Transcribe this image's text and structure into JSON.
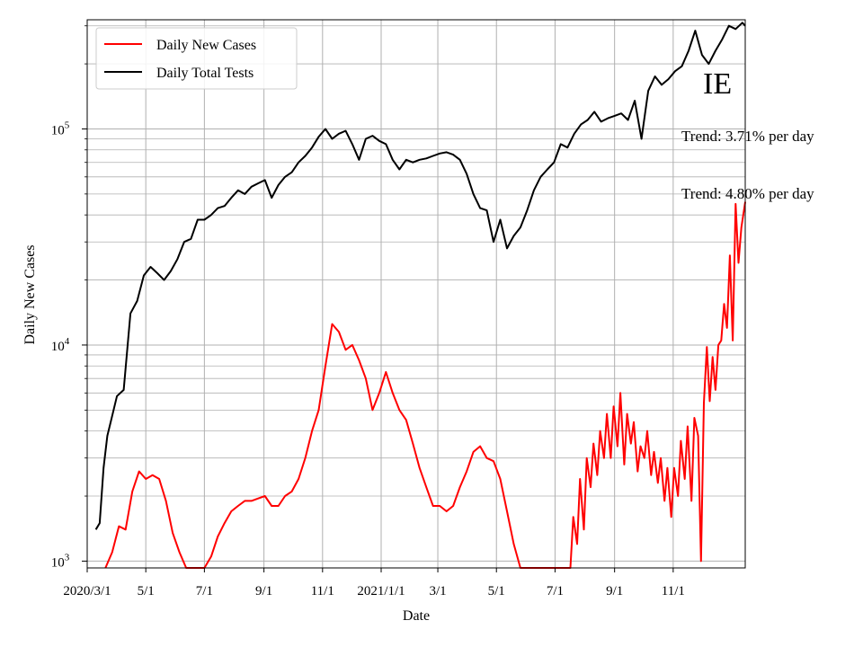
{
  "chart_data": {
    "type": "line",
    "title": "",
    "xlabel": "Date",
    "ylabel": "Daily New Cases",
    "yscale": "log",
    "ylim": [
      930,
      320000
    ],
    "xlim": [
      "2020-03-01",
      "2022-01-15"
    ],
    "grid": true,
    "legend_position": "top-left",
    "code_label": "IE",
    "annotations": [
      "Trend: 3.71% per day",
      "Trend: 4.80% per day"
    ],
    "x_ticks": [
      {
        "date": "2020-03-01",
        "label": "2020/3/1"
      },
      {
        "date": "2020-05-01",
        "label": "5/1"
      },
      {
        "date": "2020-07-01",
        "label": "7/1"
      },
      {
        "date": "2020-09-01",
        "label": "9/1"
      },
      {
        "date": "2020-11-01",
        "label": "11/1"
      },
      {
        "date": "2021-01-01",
        "label": "2021/1/1"
      },
      {
        "date": "2021-03-01",
        "label": "3/1"
      },
      {
        "date": "2021-05-01",
        "label": "5/1"
      },
      {
        "date": "2021-07-01",
        "label": "7/1"
      },
      {
        "date": "2021-09-01",
        "label": "9/1"
      },
      {
        "date": "2021-11-01",
        "label": "11/1"
      }
    ],
    "y_ticks": [
      {
        "value": 1000,
        "base": "10",
        "exp": "3"
      },
      {
        "value": 10000,
        "base": "10",
        "exp": "4"
      },
      {
        "value": 100000,
        "base": "10",
        "exp": "5"
      }
    ],
    "series": [
      {
        "name": "Daily New Cases",
        "color": "#ff0000",
        "x": [
          "2020-03-13",
          "2020-03-20",
          "2020-03-27",
          "2020-04-03",
          "2020-04-10",
          "2020-04-17",
          "2020-04-24",
          "2020-05-01",
          "2020-05-08",
          "2020-05-15",
          "2020-05-22",
          "2020-05-29",
          "2020-06-05",
          "2020-06-12",
          "2020-06-19",
          "2020-07-01",
          "2020-07-08",
          "2020-07-15",
          "2020-07-22",
          "2020-07-29",
          "2020-08-05",
          "2020-08-12",
          "2020-08-19",
          "2020-08-26",
          "2020-09-02",
          "2020-09-09",
          "2020-09-16",
          "2020-09-23",
          "2020-09-30",
          "2020-10-07",
          "2020-10-14",
          "2020-10-21",
          "2020-10-28",
          "2020-11-04",
          "2020-11-11",
          "2020-11-18",
          "2020-11-25",
          "2020-12-02",
          "2020-12-09",
          "2020-12-16",
          "2020-12-23",
          "2020-12-30",
          "2021-01-06",
          "2021-01-13",
          "2021-01-20",
          "2021-01-27",
          "2021-02-03",
          "2021-02-10",
          "2021-02-17",
          "2021-02-24",
          "2021-03-03",
          "2021-03-10",
          "2021-03-17",
          "2021-03-24",
          "2021-03-31",
          "2021-04-07",
          "2021-04-14",
          "2021-04-21",
          "2021-04-28",
          "2021-05-05",
          "2021-05-12",
          "2021-05-19",
          "2021-05-26",
          "2021-06-01",
          "2021-07-17",
          "2021-07-20",
          "2021-07-24",
          "2021-07-27",
          "2021-07-31",
          "2021-08-03",
          "2021-08-07",
          "2021-08-10",
          "2021-08-14",
          "2021-08-17",
          "2021-08-21",
          "2021-08-24",
          "2021-08-28",
          "2021-08-31",
          "2021-09-04",
          "2021-09-07",
          "2021-09-11",
          "2021-09-14",
          "2021-09-18",
          "2021-09-21",
          "2021-09-25",
          "2021-09-28",
          "2021-10-02",
          "2021-10-05",
          "2021-10-09",
          "2021-10-12",
          "2021-10-16",
          "2021-10-19",
          "2021-10-23",
          "2021-10-26",
          "2021-10-30",
          "2021-11-02",
          "2021-11-06",
          "2021-11-09",
          "2021-11-13",
          "2021-11-16",
          "2021-11-20",
          "2021-11-23",
          "2021-11-27",
          "2021-11-30",
          "2021-12-03",
          "2021-12-06",
          "2021-12-09",
          "2021-12-12",
          "2021-12-15",
          "2021-12-18",
          "2021-12-21",
          "2021-12-24",
          "2021-12-27",
          "2021-12-30",
          "2022-01-02",
          "2022-01-05",
          "2022-01-08",
          "2022-01-11",
          "2022-01-15"
        ],
        "values": [
          null,
          930,
          1100,
          1450,
          1400,
          2100,
          2600,
          2400,
          2500,
          2400,
          1900,
          1350,
          1100,
          930,
          930,
          930,
          1050,
          1300,
          1500,
          1700,
          1800,
          1900,
          1900,
          1950,
          2000,
          1800,
          1800,
          2000,
          2100,
          2400,
          3000,
          4000,
          5000,
          8000,
          12500,
          11500,
          9500,
          10000,
          8500,
          7000,
          5000,
          6000,
          7500,
          6000,
          5000,
          4500,
          3500,
          2700,
          2200,
          1800,
          1800,
          1700,
          1800,
          2200,
          2600,
          3200,
          3400,
          3000,
          2900,
          2400,
          1700,
          1200,
          930,
          930,
          930,
          1600,
          1200,
          2400,
          1400,
          3000,
          2200,
          3500,
          2500,
          4000,
          3000,
          4800,
          3000,
          5200,
          3400,
          6000,
          2800,
          4800,
          3500,
          4400,
          2600,
          3400,
          3000,
          4000,
          2500,
          3200,
          2300,
          3000,
          1900,
          2700,
          1600,
          2700,
          2000,
          3600,
          2400,
          4200,
          1900,
          4600,
          3800,
          1000,
          5400,
          9800,
          5500,
          8800,
          6200,
          10000,
          10500,
          15500,
          12000,
          26000,
          10500,
          45000,
          24000,
          35000,
          46000
        ]
      },
      {
        "name": "Daily Total Tests",
        "color": "#000000",
        "x": [
          "2020-03-10",
          "2020-03-14",
          "2020-03-18",
          "2020-03-22",
          "2020-03-26",
          "2020-04-01",
          "2020-04-08",
          "2020-04-15",
          "2020-04-22",
          "2020-04-29",
          "2020-05-06",
          "2020-05-13",
          "2020-05-20",
          "2020-05-27",
          "2020-06-03",
          "2020-06-10",
          "2020-06-17",
          "2020-06-24",
          "2020-07-01",
          "2020-07-08",
          "2020-07-15",
          "2020-07-22",
          "2020-07-29",
          "2020-08-05",
          "2020-08-12",
          "2020-08-19",
          "2020-08-26",
          "2020-09-02",
          "2020-09-09",
          "2020-09-16",
          "2020-09-23",
          "2020-09-30",
          "2020-10-07",
          "2020-10-14",
          "2020-10-21",
          "2020-10-28",
          "2020-11-04",
          "2020-11-11",
          "2020-11-18",
          "2020-11-25",
          "2020-12-02",
          "2020-12-09",
          "2020-12-16",
          "2020-12-23",
          "2020-12-30",
          "2021-01-06",
          "2021-01-13",
          "2021-01-20",
          "2021-01-27",
          "2021-02-03",
          "2021-02-10",
          "2021-02-17",
          "2021-02-24",
          "2021-03-03",
          "2021-03-10",
          "2021-03-17",
          "2021-03-24",
          "2021-03-31",
          "2021-04-07",
          "2021-04-14",
          "2021-04-21",
          "2021-04-28",
          "2021-05-05",
          "2021-05-12",
          "2021-05-19",
          "2021-05-26",
          "2021-06-02",
          "2021-06-09",
          "2021-06-16",
          "2021-06-23",
          "2021-06-30",
          "2021-07-07",
          "2021-07-14",
          "2021-07-21",
          "2021-07-28",
          "2021-08-04",
          "2021-08-11",
          "2021-08-18",
          "2021-08-25",
          "2021-09-01",
          "2021-09-08",
          "2021-09-15",
          "2021-09-22",
          "2021-09-29",
          "2021-10-06",
          "2021-10-13",
          "2021-10-20",
          "2021-10-27",
          "2021-11-03",
          "2021-11-10",
          "2021-11-17",
          "2021-11-24",
          "2021-12-01",
          "2021-12-08",
          "2021-12-15",
          "2021-12-22",
          "2021-12-29",
          "2022-01-05",
          "2022-01-12",
          "2022-01-15"
        ],
        "values": [
          1400,
          1500,
          2700,
          3800,
          4500,
          5800,
          6200,
          14000,
          16000,
          21000,
          23000,
          21500,
          20000,
          22000,
          25000,
          30000,
          31000,
          38000,
          38000,
          40000,
          43000,
          44000,
          48000,
          52000,
          50000,
          54000,
          56000,
          58000,
          48000,
          55000,
          60000,
          63000,
          70000,
          75000,
          82000,
          92000,
          100000,
          90000,
          95000,
          98000,
          85000,
          72000,
          90000,
          93000,
          88000,
          85000,
          72000,
          65000,
          72000,
          70000,
          72000,
          73000,
          75000,
          77000,
          78000,
          76000,
          72000,
          62000,
          50000,
          43000,
          42000,
          30000,
          38000,
          28000,
          32000,
          35000,
          42000,
          52000,
          60000,
          65000,
          70000,
          85000,
          82000,
          95000,
          105000,
          110000,
          120000,
          108000,
          112000,
          115000,
          118000,
          110000,
          135000,
          90000,
          150000,
          175000,
          160000,
          170000,
          185000,
          195000,
          230000,
          285000,
          220000,
          200000,
          230000,
          260000,
          300000,
          290000,
          310000,
          300000
        ]
      }
    ]
  }
}
